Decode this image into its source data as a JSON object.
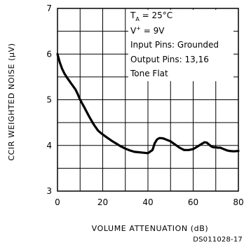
{
  "chart_data": {
    "type": "line",
    "title": "",
    "xlabel": "VOLUME ATTENUATION (dB)",
    "ylabel": "CCIR WEIGHTED NOISE (μV)",
    "xlim": [
      0,
      80
    ],
    "ylim": [
      3,
      7
    ],
    "xticks": [
      "0",
      "20",
      "40",
      "60",
      "80"
    ],
    "yticks": [
      "3",
      "4",
      "5",
      "6",
      "7"
    ],
    "x_minor_step": 10,
    "y_minor_step": 0.5,
    "grid": true,
    "series": [
      {
        "x": [
          0,
          1,
          2,
          3,
          4,
          5,
          6,
          7,
          8,
          9,
          10,
          12,
          14,
          16,
          18,
          20,
          22,
          24,
          26,
          28,
          30,
          32,
          34,
          36,
          38,
          40,
          42,
          43,
          44,
          45,
          46,
          47,
          48,
          50,
          52,
          54,
          56,
          58,
          60,
          62,
          64,
          65,
          66,
          67,
          68,
          69,
          70,
          71,
          72,
          73,
          74,
          75,
          76,
          78,
          80
        ],
        "y": [
          6.0,
          5.82,
          5.68,
          5.58,
          5.5,
          5.43,
          5.36,
          5.29,
          5.22,
          5.12,
          5.0,
          4.82,
          4.63,
          4.46,
          4.32,
          4.24,
          4.17,
          4.1,
          4.04,
          3.98,
          3.93,
          3.89,
          3.86,
          3.85,
          3.84,
          3.83,
          3.9,
          4.05,
          4.13,
          4.16,
          4.16,
          4.15,
          4.13,
          4.09,
          4.02,
          3.95,
          3.9,
          3.9,
          3.92,
          3.98,
          4.04,
          4.07,
          4.06,
          4.02,
          3.98,
          3.96,
          3.96,
          3.95,
          3.95,
          3.93,
          3.91,
          3.89,
          3.88,
          3.87,
          3.88
        ],
        "color": "#000000"
      }
    ],
    "conditions": {
      "ta_main": "T",
      "ta_sub": "A",
      "ta_rest": " = 25°C",
      "v_main": "V",
      "v_sup": "+",
      "v_rest": " = 9V",
      "input": "Input Pins: Grounded",
      "output": "Output Pins: 13,16",
      "tone": "Tone Flat"
    }
  },
  "document_id": "DS011028-17"
}
